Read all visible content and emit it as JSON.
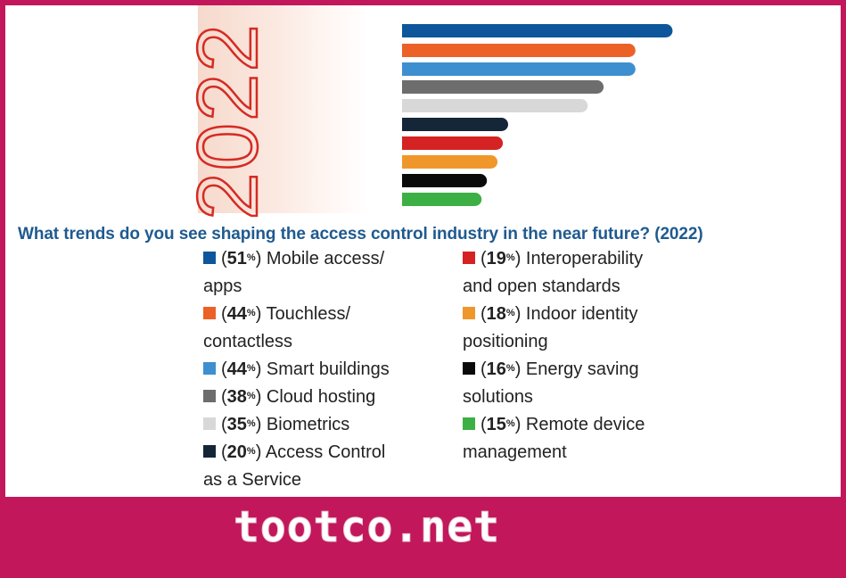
{
  "chart_data": {
    "type": "bar",
    "orientation": "horizontal",
    "year_label": "2022",
    "title": "What trends do you see shaping the access control industry in the near future? (2022)",
    "unit": "%",
    "series": [
      {
        "pct": "51",
        "label_line1": "Mobile access/",
        "label_line2": "apps",
        "value": 51,
        "color": "#0d569b"
      },
      {
        "pct": "44",
        "label_line1": "Touchless/",
        "label_line2": "contactless",
        "value": 44,
        "color": "#ec6127"
      },
      {
        "pct": "44",
        "label_line1": "Smart buildings",
        "label_line2": "",
        "value": 44,
        "color": "#3d8fd0"
      },
      {
        "pct": "38",
        "label_line1": "Cloud hosting",
        "label_line2": "",
        "value": 38,
        "color": "#6d6d6d"
      },
      {
        "pct": "35",
        "label_line1": "Biometrics",
        "label_line2": "",
        "value": 35,
        "color": "#d8d8d8"
      },
      {
        "pct": "20",
        "label_line1": "Access Control",
        "label_line2": "as a Service",
        "value": 20,
        "color": "#142638"
      },
      {
        "pct": "19",
        "label_line1": "Interoperability",
        "label_line2": "and open standards",
        "value": 19,
        "color": "#d52222"
      },
      {
        "pct": "18",
        "label_line1": "Indoor identity",
        "label_line2": "positioning",
        "value": 18,
        "color": "#f0972b"
      },
      {
        "pct": "16",
        "label_line1": "Energy saving",
        "label_line2": "solutions",
        "value": 16,
        "color": "#0a0a0a"
      },
      {
        "pct": "15",
        "label_line1": "Remote device",
        "label_line2": "management",
        "value": 15,
        "color": "#3cb044"
      }
    ]
  },
  "watermark": {
    "text": "tootco.net"
  },
  "colors": {
    "frame": "#c2185b",
    "title": "#1f5a8f",
    "year": "#d42b24"
  }
}
